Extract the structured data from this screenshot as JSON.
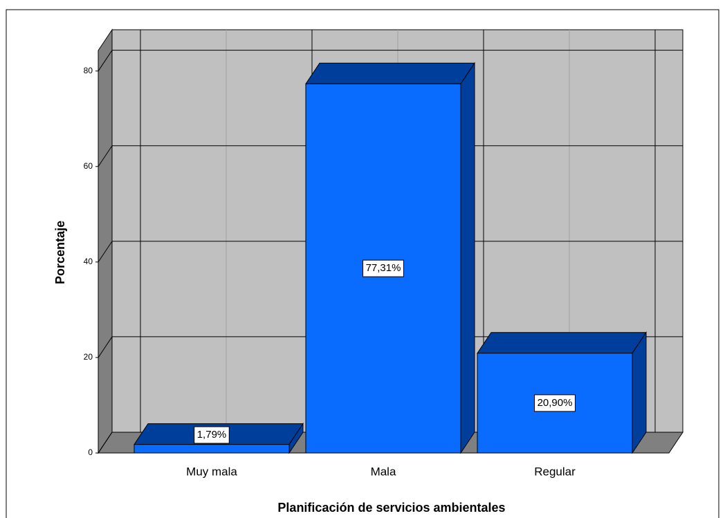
{
  "chart_data": {
    "type": "bar3d",
    "xlabel": "Planificación de servicios ambientales",
    "ylabel": "Porcentaje",
    "categories": [
      "Muy mala",
      "Mala",
      "Regular"
    ],
    "values": [
      1.79,
      77.31,
      20.9
    ],
    "value_labels": [
      "1,79%",
      "77,31%",
      "20,90%"
    ],
    "color": "#0a6cff",
    "ylim": [
      0,
      84.3
    ],
    "yticks": [
      0,
      20,
      40,
      60,
      80
    ],
    "grid": true
  }
}
